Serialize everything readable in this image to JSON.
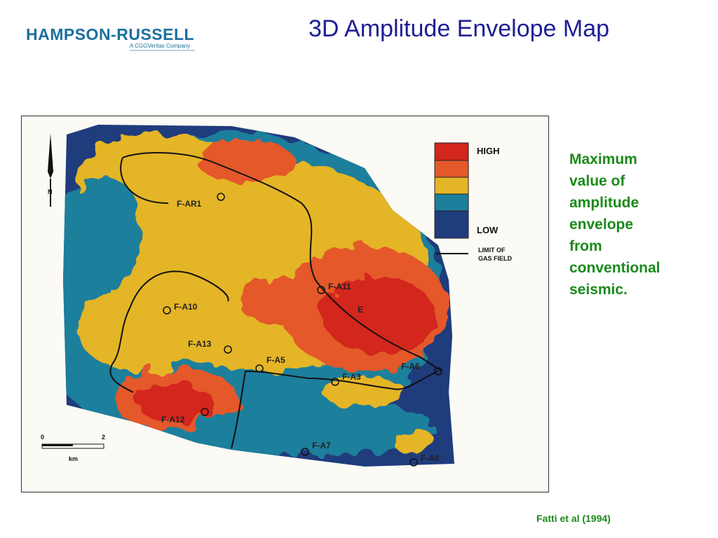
{
  "header": {
    "logo": "HAMPSON-RUSSELL",
    "logo_tagline": "A CGGVeritas Company",
    "title": "3D Amplitude Envelope Map"
  },
  "figure": {
    "legend": {
      "high": "HIGH",
      "low": "LOW",
      "limit": [
        "LIMIT OF",
        "GAS FIELD"
      ]
    },
    "wells": [
      "F-AR1",
      "F-A11",
      "F-A10",
      "F-A13",
      "F-A5",
      "F-A3",
      "F-A6",
      "F-A12",
      "F-A7",
      "F-A8"
    ],
    "area_label": "E",
    "north": "N",
    "scale": {
      "start": "0",
      "end": "2",
      "unit": "km"
    }
  },
  "caption": [
    "Maximum",
    "value of",
    "amplitude",
    "envelope",
    "from",
    "conventional",
    "seismic."
  ],
  "citation": "Fatti et al (1994)"
}
